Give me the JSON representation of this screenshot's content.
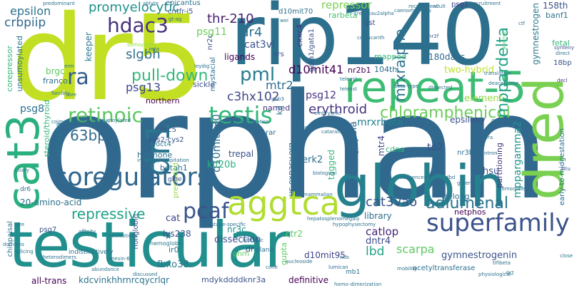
{
  "words": [
    {
      "text": "orphan",
      "color": "#30688e"
    },
    {
      "text": "dr5",
      "color": "#c2df23"
    },
    {
      "text": "rip140",
      "color": "#2d708e"
    },
    {
      "text": "testicular",
      "color": "#218f8d"
    },
    {
      "text": "globin",
      "color": "#26818e"
    },
    {
      "text": "repeat-5",
      "color": "#3dbc74"
    },
    {
      "text": "dred",
      "color": "#7ad151"
    },
    {
      "text": "cat3",
      "color": "#2ab07f"
    },
    {
      "text": "aggtca",
      "color": "#b0dd2f"
    },
    {
      "text": "dr1",
      "color": "#2a778e"
    },
    {
      "text": "coregulators",
      "color": "#31678e"
    },
    {
      "text": "testis",
      "color": "#35b779"
    },
    {
      "text": "retinoic",
      "color": "#5cc863"
    },
    {
      "text": "superfamily",
      "color": "#3b528b"
    },
    {
      "text": "chloramphenicol",
      "color": "#6ccd5a"
    },
    {
      "text": "hdac3",
      "color": "#46327e"
    },
    {
      "text": "pcaf",
      "color": "#3a548c"
    },
    {
      "text": "pml",
      "color": "#287c8e"
    },
    {
      "text": "ra",
      "color": "#365d8d"
    },
    {
      "text": "adlumenal",
      "color": "#2c728e"
    },
    {
      "text": "cat3vao",
      "color": "#3b528b"
    },
    {
      "text": "pull-down",
      "color": "#35b779"
    },
    {
      "text": "erythroid",
      "color": "#46327e"
    },
    {
      "text": "repressive",
      "color": "#1fa088"
    },
    {
      "text": "mrxrbeta",
      "color": "#26818e"
    },
    {
      "text": "mppardelta",
      "color": "#20a386"
    },
    {
      "text": "mrxralpha",
      "color": "#2c728e"
    },
    {
      "text": "catlop",
      "color": "#482576"
    },
    {
      "text": "63bp",
      "color": "#306a8e"
    },
    {
      "text": "c3hx102",
      "color": "#3f4889"
    },
    {
      "text": "mtr2",
      "color": "#2e6e8e"
    },
    {
      "text": "d10mit41",
      "color": "#440154"
    },
    {
      "text": "dr4",
      "color": "#2c718e"
    },
    {
      "text": "thr-210",
      "color": "#481f70"
    },
    {
      "text": "promyelocytic",
      "color": "#21918c"
    },
    {
      "text": "epsilon",
      "color": "#2c728e"
    },
    {
      "text": "crbpiip",
      "color": "#31688e"
    },
    {
      "text": "psg11",
      "color": "#6ece58"
    },
    {
      "text": "psg13",
      "color": "#3e4989"
    },
    {
      "text": "psg12",
      "color": "#46337f"
    },
    {
      "text": "psg8",
      "color": "#2c718e"
    },
    {
      "text": "slgbh",
      "color": "#2e6e8e"
    },
    {
      "text": "cat3vl",
      "color": "#3b528b"
    },
    {
      "text": "repressor",
      "color": "#7ad151"
    },
    {
      "text": "lbd",
      "color": "#20a386"
    },
    {
      "text": "dntr4",
      "color": "#3e4a89"
    },
    {
      "text": "scarpa",
      "color": "#5ec962"
    },
    {
      "text": "gymnestrogenin",
      "color": "#3b528b"
    },
    {
      "text": "fbxo38",
      "color": "#2a788e"
    },
    {
      "text": "nr3c",
      "color": "#21918c"
    },
    {
      "text": "cat",
      "color": "#414487"
    },
    {
      "text": "to2",
      "color": "#3b528b"
    },
    {
      "text": "bradyopsia",
      "color": "#31688e"
    },
    {
      "text": "mppargamma2",
      "color": "#1f968b"
    },
    {
      "text": "d10mit230",
      "color": "#2e6f8e"
    },
    {
      "text": "cxxc5",
      "color": "#3b528b"
    },
    {
      "text": "cys2-cys2",
      "color": "#3b528b"
    },
    {
      "text": "epicantus",
      "color": "#2d708e"
    },
    {
      "text": "cntfr-i5",
      "color": "#3a548c"
    },
    {
      "text": "d10mit70",
      "color": "#2e6e8e"
    },
    {
      "text": "rarbeta",
      "color": "#44bf70"
    },
    {
      "text": "psg1",
      "color": "#414487"
    },
    {
      "text": "gst",
      "color": "#3b528b"
    },
    {
      "text": "180days",
      "color": "#31688e"
    },
    {
      "text": "104th",
      "color": "#2e6e8e"
    },
    {
      "text": "nr2b1",
      "color": "#440154"
    },
    {
      "text": "two-hybrid",
      "color": "#bddf26"
    },
    {
      "text": "element",
      "color": "#95d840"
    },
    {
      "text": "epsilony",
      "color": "#3b528b"
    },
    {
      "text": "named",
      "color": "#46337f"
    },
    {
      "text": "trepal",
      "color": "#3b528b"
    },
    {
      "text": "hormone",
      "color": "#2c718e"
    },
    {
      "text": "oct4",
      "color": "#2a788e"
    },
    {
      "text": "kif20b",
      "color": "#29af7f"
    },
    {
      "text": "betah1",
      "color": "#2c718e"
    },
    {
      "text": "erk2",
      "color": "#2e6f8e"
    },
    {
      "text": "tagged",
      "color": "#35b779"
    },
    {
      "text": "mtr4",
      "color": "#414487"
    },
    {
      "text": "partitioning",
      "color": "#46337f"
    },
    {
      "text": "hsu",
      "color": "#3b528b"
    },
    {
      "text": "lys238",
      "color": "#3b528b"
    },
    {
      "text": "ir0",
      "color": "#2c718e"
    },
    {
      "text": "dissection",
      "color": "#3b528b"
    },
    {
      "text": "library",
      "color": "#2e6e8e"
    },
    {
      "text": "d10mit95",
      "color": "#414487"
    },
    {
      "text": "ctr2",
      "color": "#5ec962"
    },
    {
      "text": "definitive",
      "color": "#440154"
    },
    {
      "text": "mdykddddknr3a",
      "color": "#3b528b"
    },
    {
      "text": "kdcvinkhhrnrcqycrlqr",
      "color": "#2c718e"
    },
    {
      "text": "all-trans",
      "color": "#440154"
    },
    {
      "text": "20-amino-acid",
      "color": "#2c718e"
    },
    {
      "text": "psg7",
      "color": "#3b528b"
    },
    {
      "text": "northern",
      "color": "#440154"
    },
    {
      "text": "sickle",
      "color": "#3b528b"
    },
    {
      "text": "ligands",
      "color": "#440154"
    },
    {
      "text": "nrs",
      "color": "#3b528b"
    },
    {
      "text": "mapped",
      "color": "#35b779"
    },
    {
      "text": "cxxc4",
      "color": "#46337f"
    },
    {
      "text": "gata1/gata1",
      "color": "#3b528b"
    },
    {
      "text": "mystacial",
      "color": "#2c718e"
    },
    {
      "text": "nr2c",
      "color": "#3b528b"
    },
    {
      "text": "keeper",
      "color": "#2a788e"
    },
    {
      "text": "brgc",
      "color": "#5ec962"
    },
    {
      "text": "franco",
      "color": "#2c718e"
    },
    {
      "text": "unsumoylated",
      "color": "#2a788e"
    },
    {
      "text": "corepressor",
      "color": "#35b779"
    },
    {
      "text": "steroid/thyroid",
      "color": "#35b779"
    },
    {
      "text": "cntfalpha",
      "color": "#2a788e"
    },
    {
      "text": "preciuded",
      "color": "#95d840"
    },
    {
      "text": "nonglobin",
      "color": "#3b528b"
    },
    {
      "text": "chinpaisal",
      "color": "#2c718e"
    },
    {
      "text": "indistinctively",
      "color": "#2c718e"
    },
    {
      "text": "158th",
      "color": "#3b528b"
    },
    {
      "text": "banf1",
      "color": "#2c718e"
    },
    {
      "text": "fetal",
      "color": "#35b779"
    },
    {
      "text": "18bp",
      "color": "#3b528b"
    },
    {
      "text": "early-to-midgestation",
      "color": "#2c718e"
    },
    {
      "text": "gymnestrogen",
      "color": "#2a788e"
    },
    {
      "text": "cdna",
      "color": "#35b779"
    },
    {
      "text": "us.expasy.org",
      "color": "#2c718e"
    },
    {
      "text": "belong",
      "color": "#2c718e"
    },
    {
      "text": "nr3b",
      "color": "#2c718e"
    },
    {
      "text": "netphos",
      "color": "#440154"
    },
    {
      "text": "gnrh",
      "color": "#5ec962"
    },
    {
      "text": "hemoglobin",
      "color": "#2a788e"
    },
    {
      "text": "acetyltransferase",
      "color": "#2c718e"
    },
    {
      "text": "dr",
      "color": "#3b528b"
    },
    {
      "text": "plana",
      "color": "#2c718e"
    },
    {
      "text": "kd",
      "color": "#2c718e"
    },
    {
      "text": "rar",
      "color": "#2c718e"
    },
    {
      "text": "gupta",
      "color": "#5ec962"
    },
    {
      "text": "dr6",
      "color": "#2c718e"
    },
    {
      "text": "glhe",
      "color": "#3b528b"
    },
    {
      "text": "mb1",
      "color": "#2c718e"
    },
    {
      "text": "sumoylated",
      "color": "#95d840"
    },
    {
      "text": "decl",
      "color": "#46337f"
    }
  ],
  "tiny_words": [
    "gnb3",
    "dr2",
    "situ",
    "close",
    "murine",
    "nr2f",
    "ctf",
    "caenorhabditis",
    "deacetylase",
    "synteny",
    "direct",
    "adult",
    "teleost",
    "translation",
    "ciliary",
    "rare",
    "splicing",
    "abundance",
    "discussed",
    "hypophysectomy",
    "stage-specific",
    "cytokinetic",
    "embryonic",
    "cataract",
    "coimmunoprecipitation",
    "immunoprecipitation",
    "biphasic",
    "hepatosplenomegaly",
    "nucleotides",
    "atra",
    "intron",
    "homodimer",
    "sequences",
    "dbd",
    "green",
    "vitamin",
    "biological",
    "mammalian",
    "recruitment",
    "kinesin-6",
    "nucleoside",
    "mobility",
    "lumican",
    "rids",
    "cone",
    "physiological",
    "homo-dimerization",
    "predominant",
    "recruitment",
    "coelacanth",
    "crem-tau2alpha",
    "teleost",
    "forcibly",
    "affinity",
    "zeta",
    "ablyte",
    "gt-ag",
    "erm",
    "heterodimers",
    "core",
    "wei",
    "beta-type",
    "domains",
    "gar",
    "tifibeta",
    "sumoylated",
    "leydig",
    "dissected",
    "coimmunoprecipitation"
  ]
}
